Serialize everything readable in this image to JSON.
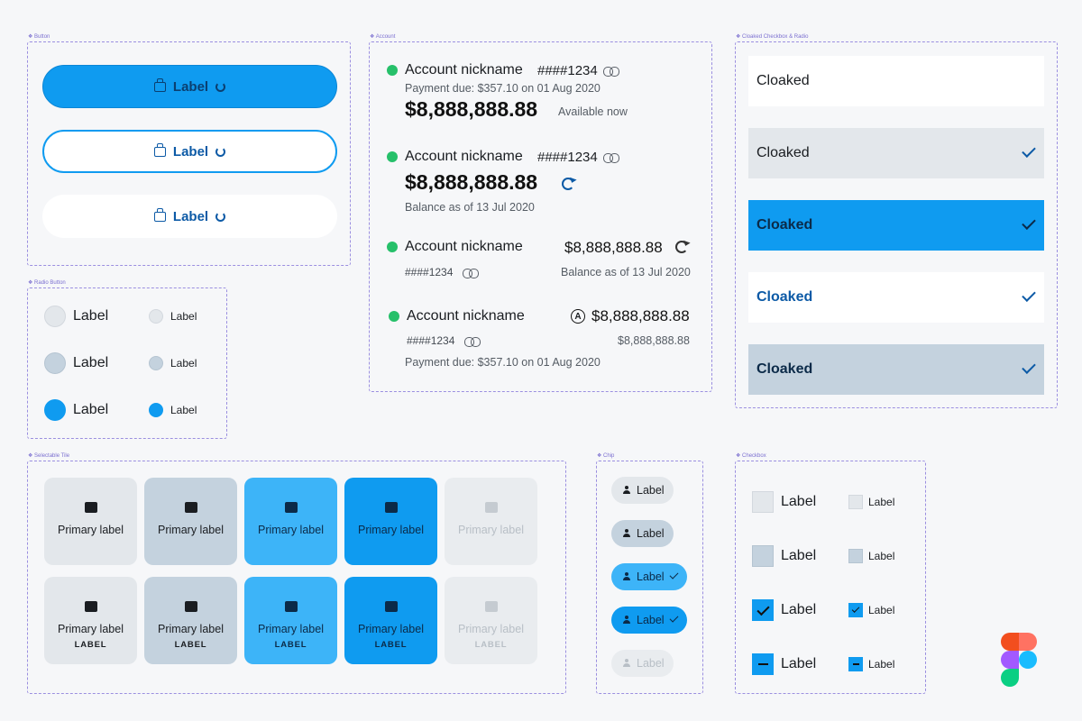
{
  "frames": {
    "button": "Button",
    "account": "Account",
    "cloaked": "Cloaked Checkbox & Radio",
    "radio": "Radio Button",
    "selectable_tile": "Selectable Tile",
    "chip": "Chip",
    "checkbox": "Checkbox"
  },
  "buttons": [
    {
      "label": "Label",
      "variant": "primary"
    },
    {
      "label": "Label",
      "variant": "outline"
    },
    {
      "label": "Label",
      "variant": "ghost"
    }
  ],
  "radios": [
    {
      "label_big": "Label",
      "label_small": "Label",
      "state": "default"
    },
    {
      "label_big": "Label",
      "label_small": "Label",
      "state": "hover"
    },
    {
      "label_big": "Label",
      "label_small": "Label",
      "state": "selected"
    }
  ],
  "accounts": {
    "a1": {
      "nickname": "Account nickname",
      "number": "####1234",
      "payment": "Payment due: $357.10 on 01 Aug 2020",
      "amount": "$8,888,888.88",
      "note": "Available now"
    },
    "a2": {
      "nickname": "Account nickname",
      "number": "####1234",
      "amount": "$8,888,888.88",
      "balance": "Balance as of 13 Jul 2020"
    },
    "a3": {
      "nickname": "Account nickname",
      "number": "####1234",
      "amount": "$8,888,888.88",
      "balance": "Balance as of 13 Jul 2020"
    },
    "a4": {
      "nickname": "Account nickname",
      "number": "####1234",
      "amount": "$8,888,888.88",
      "amount2": "$8,888,888.88",
      "payment": "Payment due: $357.10 on 01 Aug 2020",
      "a_icon": "A"
    }
  },
  "cloaked": [
    {
      "label": "Cloaked",
      "checked": false
    },
    {
      "label": "Cloaked",
      "checked": true
    },
    {
      "label": "Cloaked",
      "checked": true
    },
    {
      "label": "Cloaked",
      "checked": true
    },
    {
      "label": "Cloaked",
      "checked": true
    }
  ],
  "tiles": {
    "primary_label": "Primary label",
    "sub_label": "LABEL"
  },
  "chips": [
    {
      "label": "Label",
      "checked": false
    },
    {
      "label": "Label",
      "checked": false
    },
    {
      "label": "Label",
      "checked": true
    },
    {
      "label": "Label",
      "checked": true
    },
    {
      "label": "Label",
      "checked": false
    }
  ],
  "checkboxes": [
    {
      "label_big": "Label",
      "label_small": "Label",
      "state": "default"
    },
    {
      "label_big": "Label",
      "label_small": "Label",
      "state": "hover"
    },
    {
      "label_big": "Label",
      "label_small": "Label",
      "state": "checked"
    },
    {
      "label_big": "Label",
      "label_small": "Label",
      "state": "indeterminate"
    }
  ],
  "colors": {
    "accent": "#0f9bf0",
    "accent_dark": "#0c5aa6",
    "success": "#26c06a",
    "neutral": "#e3e7eb",
    "neutral_hover": "#c4d2de"
  }
}
